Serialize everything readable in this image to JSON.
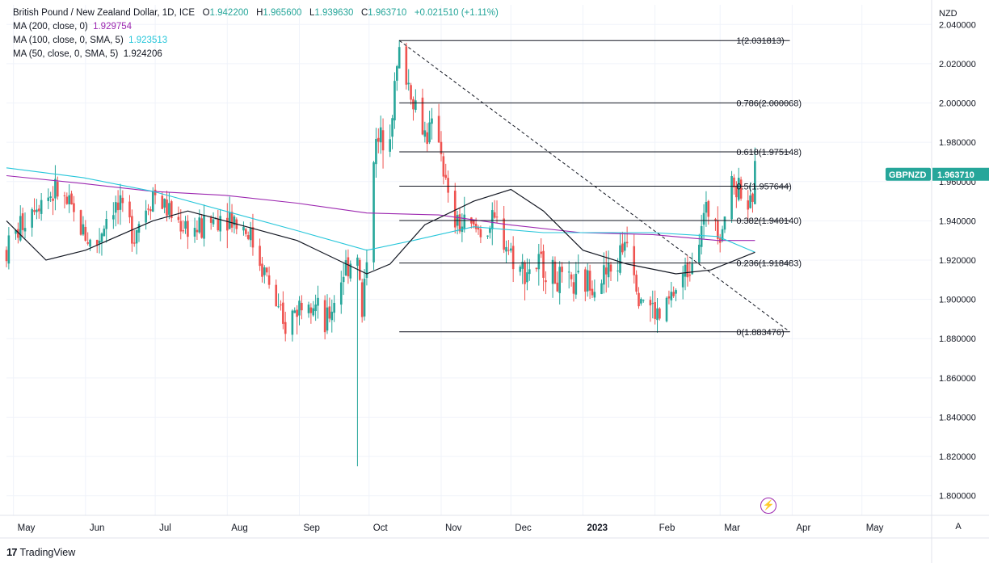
{
  "header": {
    "symbol_title": "British Pound / New Zealand Dollar, 1D, ICE",
    "o_label": "O",
    "o_value": "1.942200",
    "h_label": "H",
    "h_value": "1.965600",
    "l_label": "L",
    "l_value": "1.939630",
    "c_label": "C",
    "c_value": "1.963710",
    "change": "+0.021510 (+1.11%)"
  },
  "indicators": [
    {
      "label": "MA (200, close, 0)",
      "value": "1.929754",
      "color": "#9c27b0"
    },
    {
      "label": "MA (100, close, 0, SMA, 5)",
      "value": "1.923513",
      "color": "#26c6da"
    },
    {
      "label": "MA (50, close, 0, SMA, 5)",
      "value": "1.924206",
      "color": "#131722"
    }
  ],
  "price_scale": {
    "currency": "NZD",
    "current_symbol": "GBPNZD",
    "current_price": "1.963710"
  },
  "footer": {
    "brand": "TradingView",
    "auto_button": "A"
  },
  "colors": {
    "up": "#26a69a",
    "down": "#ef5350",
    "ma200": "#9c27b0",
    "ma100": "#26c6da",
    "ma50": "#131722",
    "grid": "#f0f3fa"
  },
  "chart_data": {
    "type": "candlestick",
    "title": "British Pound / New Zealand Dollar, 1D, ICE",
    "ylabel": "NZD",
    "ylim": [
      1.79,
      2.05
    ],
    "y_ticks": [
      "1.800000",
      "1.820000",
      "1.840000",
      "1.860000",
      "1.880000",
      "1.900000",
      "1.920000",
      "1.940000",
      "1.960000",
      "1.980000",
      "2.000000",
      "2.020000",
      "2.040000"
    ],
    "x_ticks": [
      {
        "label": "May",
        "date": "2022-05-01"
      },
      {
        "label": "Jun",
        "date": "2022-06-01"
      },
      {
        "label": "Jul",
        "date": "2022-07-01"
      },
      {
        "label": "Aug",
        "date": "2022-08-01"
      },
      {
        "label": "Sep",
        "date": "2022-09-01"
      },
      {
        "label": "Oct",
        "date": "2022-10-01"
      },
      {
        "label": "Nov",
        "date": "2022-11-01"
      },
      {
        "label": "Dec",
        "date": "2022-12-01"
      },
      {
        "label": "2023",
        "date": "2023-01-01"
      },
      {
        "label": "Feb",
        "date": "2023-02-01"
      },
      {
        "label": "Mar",
        "date": "2023-03-01"
      },
      {
        "label": "Apr",
        "date": "2023-04-01"
      },
      {
        "label": "May",
        "date": "2023-05-01"
      }
    ],
    "x_range": [
      "2022-04-28",
      "2023-05-31"
    ],
    "price_path": [
      [
        "2022-04-28",
        1.925
      ],
      [
        "2022-05-10",
        1.95
      ],
      [
        "2022-05-20",
        1.955
      ],
      [
        "2022-05-31",
        1.935
      ],
      [
        "2022-06-05",
        1.925
      ],
      [
        "2022-06-12",
        1.95
      ],
      [
        "2022-06-22",
        1.935
      ],
      [
        "2022-06-30",
        1.955
      ],
      [
        "2022-07-10",
        1.94
      ],
      [
        "2022-07-20",
        1.935
      ],
      [
        "2022-07-31",
        1.945
      ],
      [
        "2022-08-10",
        1.935
      ],
      [
        "2022-08-20",
        1.905
      ],
      [
        "2022-08-25",
        1.885
      ],
      [
        "2022-09-05",
        1.905
      ],
      [
        "2022-09-12",
        1.885
      ],
      [
        "2022-09-20",
        1.915
      ],
      [
        "2022-09-26",
        1.925
      ],
      [
        "2022-09-28",
        1.89
      ],
      [
        "2022-10-03",
        1.975
      ],
      [
        "2022-10-10",
        1.99
      ],
      [
        "2022-10-14",
        2.025
      ],
      [
        "2022-10-18",
        2.01
      ],
      [
        "2022-10-25",
        1.985
      ],
      [
        "2022-10-31",
        1.985
      ],
      [
        "2022-11-05",
        1.94
      ],
      [
        "2022-11-15",
        1.935
      ],
      [
        "2022-11-25",
        1.938
      ],
      [
        "2022-12-05",
        1.915
      ],
      [
        "2022-12-15",
        1.918
      ],
      [
        "2022-12-25",
        1.905
      ],
      [
        "2023-01-05",
        1.91
      ],
      [
        "2023-01-15",
        1.915
      ],
      [
        "2023-01-20",
        1.935
      ],
      [
        "2023-01-25",
        1.905
      ],
      [
        "2023-02-03",
        1.89
      ],
      [
        "2023-02-10",
        1.905
      ],
      [
        "2023-02-15",
        1.915
      ],
      [
        "2023-02-21",
        1.94
      ],
      [
        "2023-02-26",
        1.948
      ],
      [
        "2023-03-01",
        1.935
      ],
      [
        "2023-03-06",
        1.958
      ],
      [
        "2023-03-10",
        1.958
      ],
      [
        "2023-03-14",
        1.945
      ],
      [
        "2023-03-16",
        1.963
      ]
    ],
    "spikes": [
      {
        "date": "2022-09-26",
        "low": 1.815
      },
      {
        "date": "2022-10-14",
        "high": 2.032
      }
    ],
    "series": [
      {
        "name": "MA (200, close, 0)",
        "color": "#9c27b0",
        "points": [
          [
            "2022-04-28",
            1.963
          ],
          [
            "2022-05-31",
            1.959
          ],
          [
            "2022-06-30",
            1.955
          ],
          [
            "2022-07-31",
            1.953
          ],
          [
            "2022-08-31",
            1.949
          ],
          [
            "2022-09-30",
            1.944
          ],
          [
            "2022-10-31",
            1.943
          ],
          [
            "2022-11-30",
            1.938
          ],
          [
            "2022-12-31",
            1.934
          ],
          [
            "2023-01-31",
            1.933
          ],
          [
            "2023-02-28",
            1.93
          ],
          [
            "2023-03-16",
            1.93
          ]
        ]
      },
      {
        "name": "MA (100, close, 0, SMA, 5)",
        "color": "#26c6da",
        "points": [
          [
            "2022-04-28",
            1.967
          ],
          [
            "2022-05-31",
            1.962
          ],
          [
            "2022-06-30",
            1.955
          ],
          [
            "2022-07-31",
            1.945
          ],
          [
            "2022-08-31",
            1.935
          ],
          [
            "2022-09-30",
            1.925
          ],
          [
            "2022-10-20",
            1.93
          ],
          [
            "2022-11-15",
            1.937
          ],
          [
            "2022-12-15",
            1.934
          ],
          [
            "2023-01-31",
            1.934
          ],
          [
            "2023-02-28",
            1.932
          ],
          [
            "2023-03-16",
            1.924
          ]
        ]
      },
      {
        "name": "MA (50, close, 0, SMA, 5)",
        "color": "#131722",
        "points": [
          [
            "2022-04-28",
            1.94
          ],
          [
            "2022-05-15",
            1.92
          ],
          [
            "2022-06-01",
            1.925
          ],
          [
            "2022-06-30",
            1.94
          ],
          [
            "2022-07-15",
            1.945
          ],
          [
            "2022-07-31",
            1.94
          ],
          [
            "2022-08-31",
            1.93
          ],
          [
            "2022-09-30",
            1.913
          ],
          [
            "2022-10-10",
            1.918
          ],
          [
            "2022-10-25",
            1.938
          ],
          [
            "2022-11-15",
            1.95
          ],
          [
            "2022-12-01",
            1.956
          ],
          [
            "2022-12-15",
            1.945
          ],
          [
            "2023-01-01",
            1.925
          ],
          [
            "2023-01-20",
            1.918
          ],
          [
            "2023-02-10",
            1.913
          ],
          [
            "2023-02-25",
            1.915
          ],
          [
            "2023-03-16",
            1.924
          ]
        ]
      }
    ],
    "fibonacci": {
      "start_date": "2022-10-14",
      "end_date": "2023-03-31",
      "label_date": "2023-03-08",
      "levels": [
        {
          "label": "1(2.031813)",
          "value": 2.031813
        },
        {
          "label": "0.786(2.000068)",
          "value": 2.000068
        },
        {
          "label": "0.618(1.975148)",
          "value": 1.975148
        },
        {
          "label": "0.5(1.957644)",
          "value": 1.957644
        },
        {
          "label": "0.382(1.940140)",
          "value": 1.94014
        },
        {
          "label": "0.236(1.918483)",
          "value": 1.918483
        },
        {
          "label": "0(1.883476)",
          "value": 1.883476
        }
      ],
      "trend_from": {
        "date": "2022-10-14",
        "value": 2.031813
      },
      "trend_to": {
        "date": "2023-03-31",
        "value": 1.883476
      }
    },
    "last_price": 1.96371,
    "grid": true
  }
}
